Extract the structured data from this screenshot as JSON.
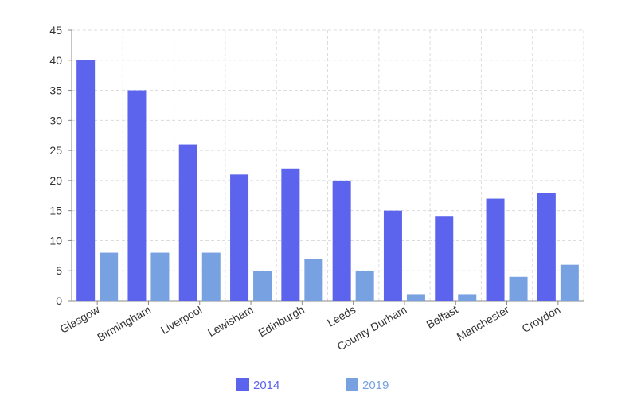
{
  "chart_data": {
    "type": "bar",
    "categories": [
      "Glasgow",
      "Birmingham",
      "Liverpool",
      "Lewisham",
      "Edinburgh",
      "Leeds",
      "County Durham",
      "Belfast",
      "Manchester",
      "Croydon"
    ],
    "series": [
      {
        "name": "2014",
        "color": "#5c64ee",
        "values": [
          40,
          35,
          26,
          21,
          22,
          20,
          15,
          14,
          17,
          18
        ]
      },
      {
        "name": "2019",
        "color": "#77a1e0",
        "values": [
          8,
          8,
          8,
          5,
          7,
          5,
          1,
          1,
          4,
          6
        ]
      }
    ],
    "ylim": [
      0,
      45
    ],
    "yticks": [
      0,
      5,
      10,
      15,
      20,
      25,
      30,
      35,
      40,
      45
    ],
    "grid": true,
    "legend_position": "bottom-center"
  }
}
